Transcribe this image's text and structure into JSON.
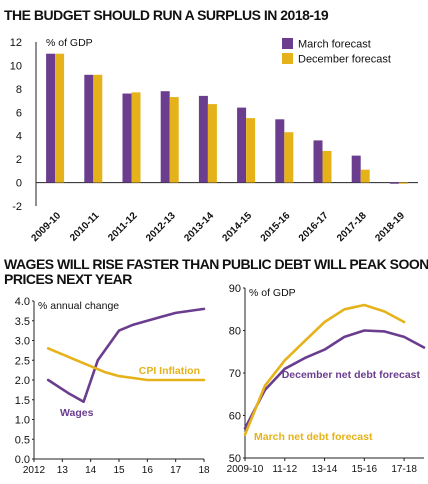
{
  "colors": {
    "purple": "#6a3d8f",
    "gold": "#e6b21a",
    "axis": "#222222",
    "grid": "#333333"
  },
  "chart_data": [
    {
      "type": "bar",
      "title": "THE BUDGET SHOULD RUN A SURPLUS IN 2018-19",
      "ylabel": "% of GDP",
      "categories": [
        "2009-10",
        "2010-11",
        "2011-12",
        "2012-13",
        "2013-14",
        "2014-15",
        "2015-16",
        "2016-17",
        "2017-18",
        "2018-19"
      ],
      "series": [
        {
          "name": "March forecast",
          "color": "#6a3d8f",
          "values": [
            11.0,
            9.2,
            7.6,
            7.8,
            7.4,
            6.4,
            5.4,
            3.6,
            2.3,
            -0.1
          ]
        },
        {
          "name": "December forecast",
          "color": "#e6b21a",
          "values": [
            11.0,
            9.2,
            7.7,
            7.3,
            6.7,
            5.5,
            4.3,
            2.7,
            1.1,
            -0.1
          ]
        }
      ],
      "ylim": [
        -2,
        12
      ],
      "yticks": [
        -2,
        0,
        2,
        4,
        6,
        8,
        10,
        12
      ],
      "legend": "top-right"
    },
    {
      "type": "line",
      "title": "WAGES WILL RISE FASTER THAN PRICES NEXT YEAR",
      "title_lines": [
        "WAGES WILL RISE FASTER THAN",
        "PRICES NEXT YEAR"
      ],
      "ylabel": "% annual change",
      "xlim": [
        2012,
        2018
      ],
      "ylim": [
        0,
        4.0
      ],
      "xticks": [
        "2012",
        "13",
        "14",
        "15",
        "16",
        "17",
        "18"
      ],
      "yticks": [
        "0.0",
        "0.5",
        "1.0",
        "1.5",
        "2.0",
        "2.5",
        "3.0",
        "3.5",
        "4.0"
      ],
      "series": [
        {
          "name": "Wages",
          "color": "#6a3d8f",
          "x": [
            2012.5,
            2013.25,
            2013.75,
            2014.25,
            2015.0,
            2015.5,
            2016.0,
            2016.5,
            2017.0,
            2017.5,
            2018.0
          ],
          "y": [
            2.0,
            1.65,
            1.45,
            2.5,
            3.25,
            3.4,
            3.5,
            3.6,
            3.7,
            3.75,
            3.8
          ]
        },
        {
          "name": "CPI Inflation",
          "color": "#e6b21a",
          "x": [
            2012.5,
            2013.0,
            2013.5,
            2014.0,
            2014.5,
            2015.0,
            2015.5,
            2016.0,
            2016.5,
            2017.0,
            2017.5,
            2018.0
          ],
          "y": [
            2.8,
            2.65,
            2.5,
            2.35,
            2.2,
            2.1,
            2.05,
            2.0,
            2.0,
            2.0,
            2.0,
            2.0
          ]
        }
      ]
    },
    {
      "type": "line",
      "title": "PUBLIC DEBT WILL PEAK SOONER",
      "ylabel": "% of GDP",
      "xlim": [
        0,
        9
      ],
      "ylim": [
        50,
        90
      ],
      "xticks": [
        "2009-10",
        "11-12",
        "13-14",
        "15-16",
        "17-18"
      ],
      "xtick_positions": [
        0,
        2,
        4,
        6,
        8
      ],
      "yticks": [
        "50",
        "60",
        "70",
        "80",
        "90"
      ],
      "series": [
        {
          "name": "December net debt forecast",
          "color": "#6a3d8f",
          "x": [
            0,
            1,
            2,
            3,
            4,
            5,
            6,
            7,
            8,
            9
          ],
          "y": [
            57,
            66,
            71,
            73.5,
            75.5,
            78.5,
            80,
            79.8,
            78.5,
            76
          ]
        },
        {
          "name": "March net debt forecast",
          "color": "#e6b21a",
          "x": [
            0,
            1,
            2,
            3,
            4,
            5,
            6,
            7,
            8
          ],
          "y": [
            55.5,
            67,
            73,
            77.5,
            82,
            85,
            86,
            84.5,
            82
          ]
        }
      ]
    }
  ]
}
